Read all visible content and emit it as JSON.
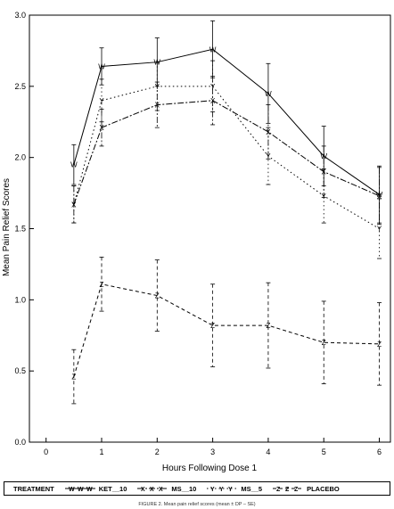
{
  "chart_data": {
    "type": "line",
    "xlabel": "Hours Following Dose 1",
    "ylabel": "Mean Pain Relief Scores",
    "xlim": [
      -0.3,
      6.2
    ],
    "ylim": [
      0.0,
      3.0
    ],
    "xticks": [
      0,
      1,
      2,
      3,
      4,
      5,
      6
    ],
    "yticks": [
      0.0,
      0.5,
      1.0,
      1.5,
      2.0,
      2.5,
      3.0
    ],
    "grid": false,
    "legend_title": "TREATMENT",
    "legend_position": "bottom",
    "x": [
      0.5,
      1,
      2,
      3,
      4,
      5,
      6
    ],
    "series": [
      {
        "name": "KET__10",
        "marker": "W",
        "dash": "",
        "values": [
          1.95,
          2.64,
          2.67,
          2.76,
          2.45,
          2.01,
          1.74
        ],
        "err": [
          0.14,
          0.13,
          0.17,
          0.2,
          0.21,
          0.21,
          0.2
        ]
      },
      {
        "name": "MS__10",
        "marker": "X",
        "dash": "7,2,2,2",
        "values": [
          1.67,
          2.21,
          2.37,
          2.4,
          2.18,
          1.9,
          1.73
        ],
        "err": [
          0.13,
          0.13,
          0.16,
          0.17,
          0.19,
          0.18,
          0.2
        ]
      },
      {
        "name": "MS__5",
        "marker": "Y",
        "dash": "1.5,3",
        "values": [
          1.67,
          2.4,
          2.5,
          2.5,
          2.01,
          1.73,
          1.5
        ],
        "err": [
          0.13,
          0.15,
          0.17,
          0.18,
          0.2,
          0.19,
          0.21
        ]
      },
      {
        "name": "PLACEBO",
        "marker": "Z",
        "dash": "4,3",
        "values": [
          0.46,
          1.11,
          1.03,
          0.82,
          0.82,
          0.7,
          0.69
        ],
        "err": [
          0.19,
          0.19,
          0.25,
          0.29,
          0.3,
          0.29,
          0.29
        ]
      }
    ]
  },
  "caption": "FIGURE 2. Mean pain relief scores (mean ± DP – SE)"
}
